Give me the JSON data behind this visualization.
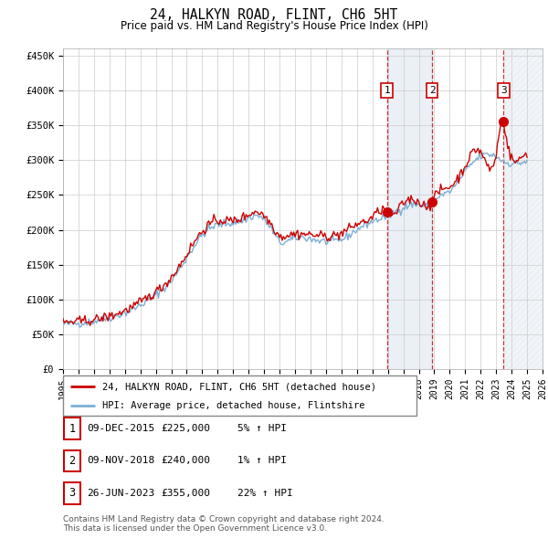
{
  "title": "24, HALKYN ROAD, FLINT, CH6 5HT",
  "subtitle": "Price paid vs. HM Land Registry's House Price Index (HPI)",
  "ylim": [
    0,
    460000
  ],
  "yticks": [
    0,
    50000,
    100000,
    150000,
    200000,
    250000,
    300000,
    350000,
    400000,
    450000
  ],
  "ytick_labels": [
    "£0",
    "£50K",
    "£100K",
    "£150K",
    "£200K",
    "£250K",
    "£300K",
    "£350K",
    "£400K",
    "£450K"
  ],
  "xlim_start": 1995.0,
  "xlim_end": 2026.0,
  "hpi_color": "#7bafd4",
  "price_color": "#cc0000",
  "bg_color": "#ffffff",
  "grid_color": "#cccccc",
  "sale_shade_color": "#dce6f1",
  "transactions": [
    {
      "label": "1",
      "date": 2015.94,
      "price": 225000,
      "pct": "5%",
      "date_str": "09-DEC-2015",
      "price_str": "£225,000"
    },
    {
      "label": "2",
      "date": 2018.86,
      "price": 240000,
      "pct": "1%",
      "date_str": "09-NOV-2018",
      "price_str": "£240,000"
    },
    {
      "label": "3",
      "date": 2023.49,
      "price": 355000,
      "pct": "22%",
      "date_str": "26-JUN-2023",
      "price_str": "£355,000"
    }
  ],
  "legend_line1": "24, HALKYN ROAD, FLINT, CH6 5HT (detached house)",
  "legend_line2": "HPI: Average price, detached house, Flintshire",
  "footer": "Contains HM Land Registry data © Crown copyright and database right 2024.\nThis data is licensed under the Open Government Licence v3.0."
}
